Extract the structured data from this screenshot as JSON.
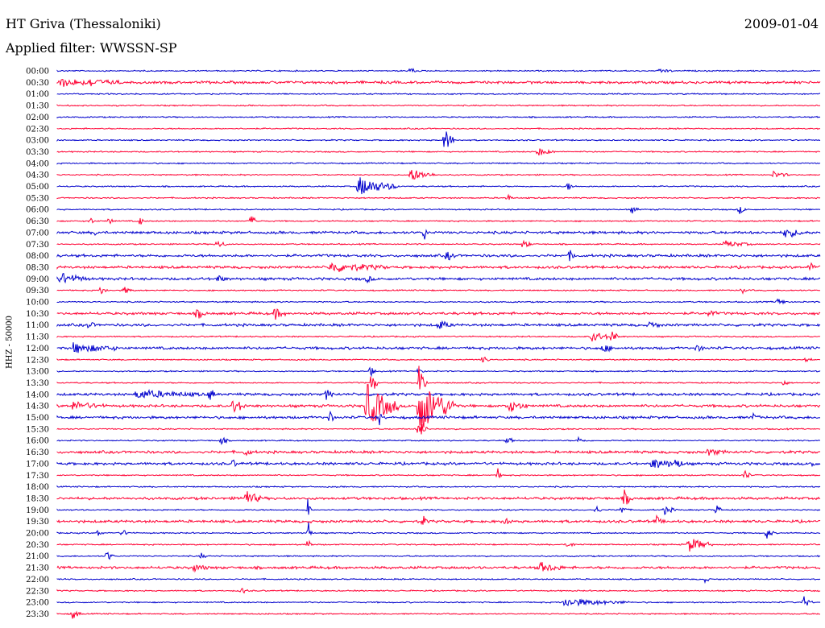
{
  "header": {
    "station": "HT Griva (Thessaloniki)",
    "date": "2009-01-04",
    "filter": "Applied filter: WWSSN-SP"
  },
  "chart_data": {
    "type": "helicorder",
    "title": "HT Griva (Thessaloniki)",
    "date": "2009-01-04",
    "filter": "WWSSN-SP",
    "ylabel": "HHZ - 50000",
    "xlabel": "",
    "trace_colors": [
      "#0000cc",
      "#ff0033"
    ],
    "rows": [
      "00:00",
      "00:30",
      "01:00",
      "01:30",
      "02:00",
      "02:30",
      "03:00",
      "03:30",
      "04:00",
      "04:30",
      "05:00",
      "05:30",
      "06:00",
      "06:30",
      "07:00",
      "07:30",
      "08:00",
      "08:30",
      "09:00",
      "09:30",
      "10:00",
      "10:30",
      "11:00",
      "11:30",
      "12:00",
      "12:30",
      "13:00",
      "13:30",
      "14:00",
      "14:30",
      "15:00",
      "15:30",
      "16:00",
      "16:30",
      "17:00",
      "17:30",
      "18:00",
      "18:30",
      "19:00",
      "19:30",
      "20:00",
      "20:30",
      "21:00",
      "21:30",
      "22:00",
      "22:30",
      "23:00",
      "23:30"
    ]
  }
}
